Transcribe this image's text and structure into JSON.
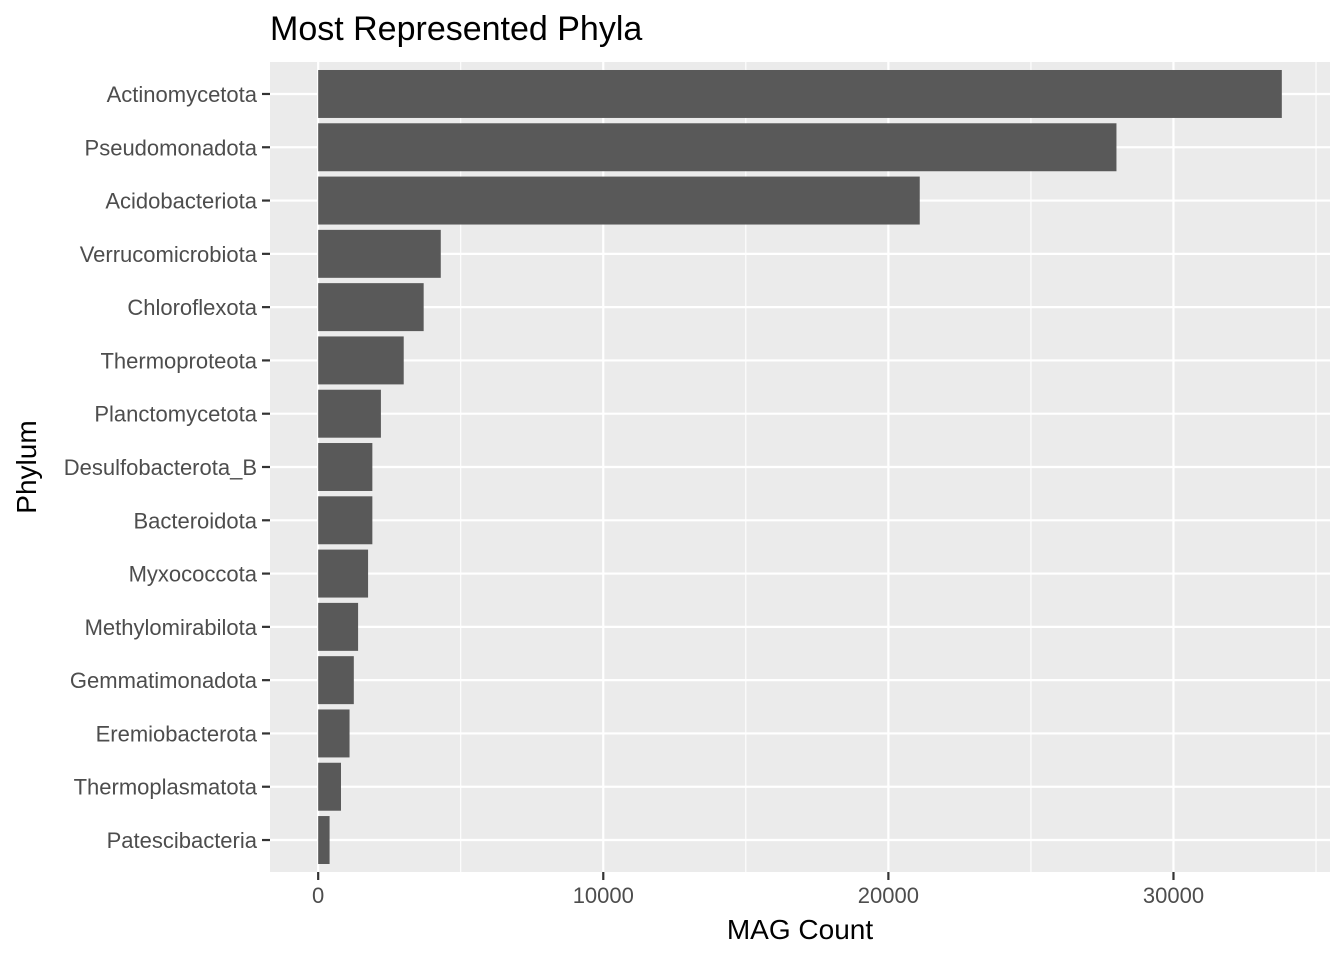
{
  "chart_data": {
    "type": "bar",
    "orientation": "horizontal",
    "title": "Most Represented Phyla",
    "xlabel": "MAG Count",
    "ylabel": "Phylum",
    "categories": [
      "Actinomycetota",
      "Pseudomonadota",
      "Acidobacteriota",
      "Verrucomicrobiota",
      "Chloroflexota",
      "Thermoproteota",
      "Planctomycetota",
      "Desulfobacterota_B",
      "Bacteroidota",
      "Myxococcota",
      "Methylomirabilota",
      "Gemmatimonadota",
      "Eremiobacterota",
      "Thermoplasmatota",
      "Patescibacteria"
    ],
    "values": [
      33800,
      28000,
      21100,
      4300,
      3700,
      3000,
      2200,
      1900,
      1900,
      1750,
      1400,
      1250,
      1100,
      800,
      400
    ],
    "xticks": [
      0,
      10000,
      20000,
      30000
    ],
    "xtick_labels": [
      "0",
      "10000",
      "20000",
      "30000"
    ],
    "xlim": [
      -1690,
      35490
    ],
    "grid": true,
    "bar_color": "#595959",
    "panel_color": "#ebebeb"
  }
}
